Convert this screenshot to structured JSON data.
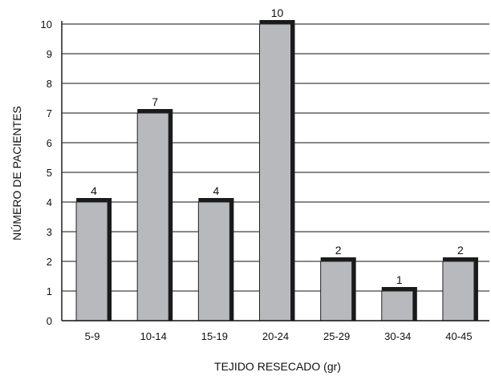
{
  "chart_data": {
    "type": "bar",
    "title": "",
    "xlabel": "TEJIDO RESECADO (gr)",
    "ylabel": "NÚMERO DE PACIENTES",
    "categories": [
      "5-9",
      "10-14",
      "15-19",
      "20-24",
      "25-29",
      "30-34",
      "40-45"
    ],
    "values": [
      4,
      7,
      4,
      10,
      2,
      1,
      2
    ],
    "data_labels": [
      "4",
      "7",
      "4",
      "10",
      "2",
      "1",
      "2"
    ],
    "ylim": [
      0,
      10
    ],
    "yticks": [
      "0",
      "1",
      "2",
      "3",
      "4",
      "5",
      "6",
      "7",
      "8",
      "9",
      "10"
    ],
    "grid": "horizontal",
    "legend": "none",
    "colors": {
      "bar_fill": "#b8b9bd",
      "bar_outline": "#222222",
      "bar_shadow": "#1a1a1a",
      "grid": "#111111"
    }
  }
}
